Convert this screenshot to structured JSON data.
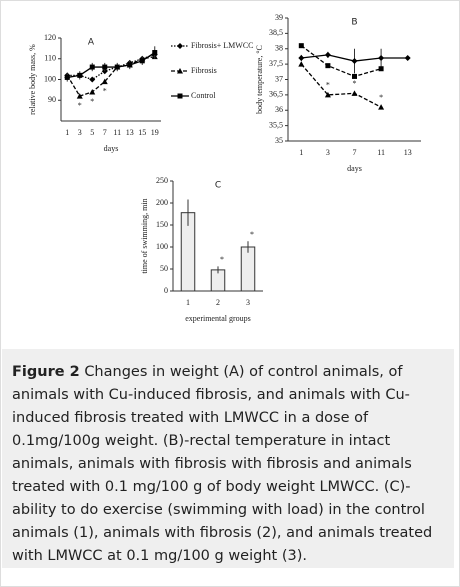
{
  "chart_data": [
    {
      "type": "line",
      "title": "A",
      "xlabel": "days",
      "ylabel": "relative body mass, %",
      "categories": [
        "1",
        "3",
        "5",
        "7",
        "11",
        "13",
        "15",
        "19"
      ],
      "ylim": [
        80,
        120
      ],
      "yticks": [
        90,
        100,
        110,
        120
      ],
      "legend": "right",
      "series": [
        {
          "name": "Fibrosis+ LMWCC",
          "color": "#000000",
          "dash": "dotted",
          "marker": "diamond",
          "values": [
            102,
            102,
            100,
            104,
            106,
            108,
            110,
            112
          ]
        },
        {
          "name": "Fibrosis",
          "color": "#000000",
          "dash": "dashed",
          "marker": "triangle",
          "values": [
            102,
            92,
            94,
            99,
            106,
            107,
            110,
            111
          ],
          "significance": [
            null,
            "*",
            "*",
            "*",
            null,
            null,
            null,
            null
          ],
          "significance_side": "below"
        },
        {
          "name": "Control",
          "color": "#000000",
          "dash": "solid",
          "marker": "square",
          "values": [
            101,
            102,
            106,
            106,
            106,
            107,
            109,
            113
          ],
          "errors": [
            2,
            2,
            2,
            2,
            2,
            2,
            2,
            3
          ]
        }
      ]
    },
    {
      "type": "line",
      "title": "B",
      "xlabel": "days",
      "ylabel": "body temperature, °C",
      "categories": [
        "1",
        "3",
        "7",
        "11",
        "13"
      ],
      "ylim": [
        35,
        39
      ],
      "yticks": [
        35,
        {
          "value": 35.5,
          "label": "35,5"
        },
        36,
        {
          "value": 36.5,
          "label": "36,5"
        },
        37,
        {
          "value": 37.5,
          "label": "37,5"
        },
        38,
        {
          "value": 38.5,
          "label": "38,5"
        },
        39
      ],
      "series": [
        {
          "color": "#000000",
          "dash": "solid",
          "marker": "diamond",
          "values": [
            37.7,
            37.8,
            37.6,
            37.7,
            37.7
          ],
          "errors": [
            0.1,
            0.1,
            0.4,
            0.3,
            0
          ]
        },
        {
          "color": "#000000",
          "dash": "dashed",
          "marker": "square",
          "values": [
            38.1,
            37.45,
            37.1,
            37.35,
            null
          ]
        },
        {
          "color": "#000000",
          "dash": "dashed",
          "marker": "triangle",
          "values": [
            37.5,
            36.5,
            36.55,
            36.1,
            null
          ],
          "significance": [
            null,
            "*",
            "*",
            "*",
            null
          ],
          "significance_side": "above"
        }
      ]
    },
    {
      "type": "bar",
      "title": "C",
      "xlabel": "experimental groups",
      "ylabel": "time of swimming, min",
      "categories": [
        "1",
        "2",
        "3"
      ],
      "values": [
        178,
        48,
        100
      ],
      "errors": [
        30,
        8,
        13
      ],
      "significance": [
        null,
        "*",
        "*"
      ],
      "color": "#eeeeee",
      "ylim": [
        0,
        250
      ],
      "yticks": [
        0,
        50,
        100,
        150,
        200,
        250
      ]
    }
  ],
  "caption": {
    "label": "Figure 2",
    "text": "Changes in weight (A) of control animals, of animals with Cu-induced fibrosis, and animals with Cu-induced fibrosis treated with LMWCC in a dose of 0.1mg/100g weight. (B)-rectal temperature in intact animals, animals with fibrosis with fibrosis and animals treated with 0.1 mg/100 g of body weight LMWCC. (C)-ability to do exercise (swimming with load) in the control animals (1), animals with fibrosis (2), and animals treated with LMWCC at 0.1 mg/100 g weight (3)."
  }
}
